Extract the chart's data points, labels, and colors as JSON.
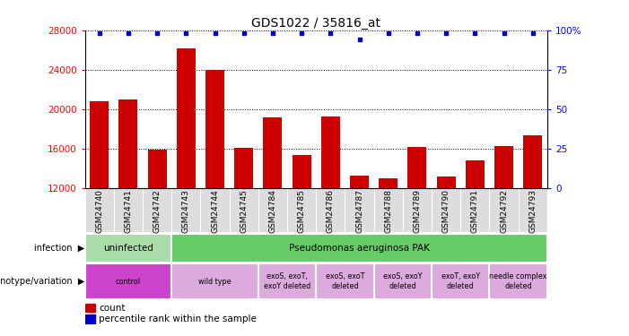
{
  "title": "GDS1022 / 35816_at",
  "samples": [
    "GSM24740",
    "GSM24741",
    "GSM24742",
    "GSM24743",
    "GSM24744",
    "GSM24745",
    "GSM24784",
    "GSM24785",
    "GSM24786",
    "GSM24787",
    "GSM24788",
    "GSM24789",
    "GSM24790",
    "GSM24791",
    "GSM24792",
    "GSM24793"
  ],
  "counts": [
    20800,
    21000,
    15900,
    26200,
    24000,
    16100,
    19200,
    15400,
    19300,
    13300,
    13000,
    16200,
    13200,
    14800,
    16300,
    17400
  ],
  "percentile_ranks": [
    98,
    98,
    98,
    98,
    98,
    98,
    98,
    98,
    98,
    94,
    98,
    98,
    98,
    98,
    98,
    98
  ],
  "bar_color": "#cc0000",
  "percentile_color": "#0000cc",
  "ylim_left": [
    12000,
    28000
  ],
  "ylim_right": [
    0,
    100
  ],
  "yticks_left": [
    12000,
    16000,
    20000,
    24000,
    28000
  ],
  "yticks_right": [
    0,
    25,
    50,
    75,
    100
  ],
  "ytick_right_labels": [
    "0",
    "25",
    "50",
    "75",
    "100%"
  ],
  "infection_row": {
    "groups": [
      {
        "label": "uninfected",
        "start": 0,
        "end": 3,
        "color": "#aaddaa"
      },
      {
        "label": "Pseudomonas aeruginosa PAK",
        "start": 3,
        "end": 16,
        "color": "#66cc66"
      }
    ]
  },
  "genotype_row": {
    "groups": [
      {
        "label": "control",
        "start": 0,
        "end": 3,
        "color": "#cc44cc"
      },
      {
        "label": "wild type",
        "start": 3,
        "end": 6,
        "color": "#ddaadd"
      },
      {
        "label": "exoS, exoT,\nexoY deleted",
        "start": 6,
        "end": 8,
        "color": "#ddaadd"
      },
      {
        "label": "exoS, exoT\ndeleted",
        "start": 8,
        "end": 10,
        "color": "#ddaadd"
      },
      {
        "label": "exoS, exoY\ndeleted",
        "start": 10,
        "end": 12,
        "color": "#ddaadd"
      },
      {
        "label": "exoT, exoY\ndeleted",
        "start": 12,
        "end": 14,
        "color": "#ddaadd"
      },
      {
        "label": "needle complex\ndeleted",
        "start": 14,
        "end": 16,
        "color": "#ddaadd"
      }
    ]
  }
}
